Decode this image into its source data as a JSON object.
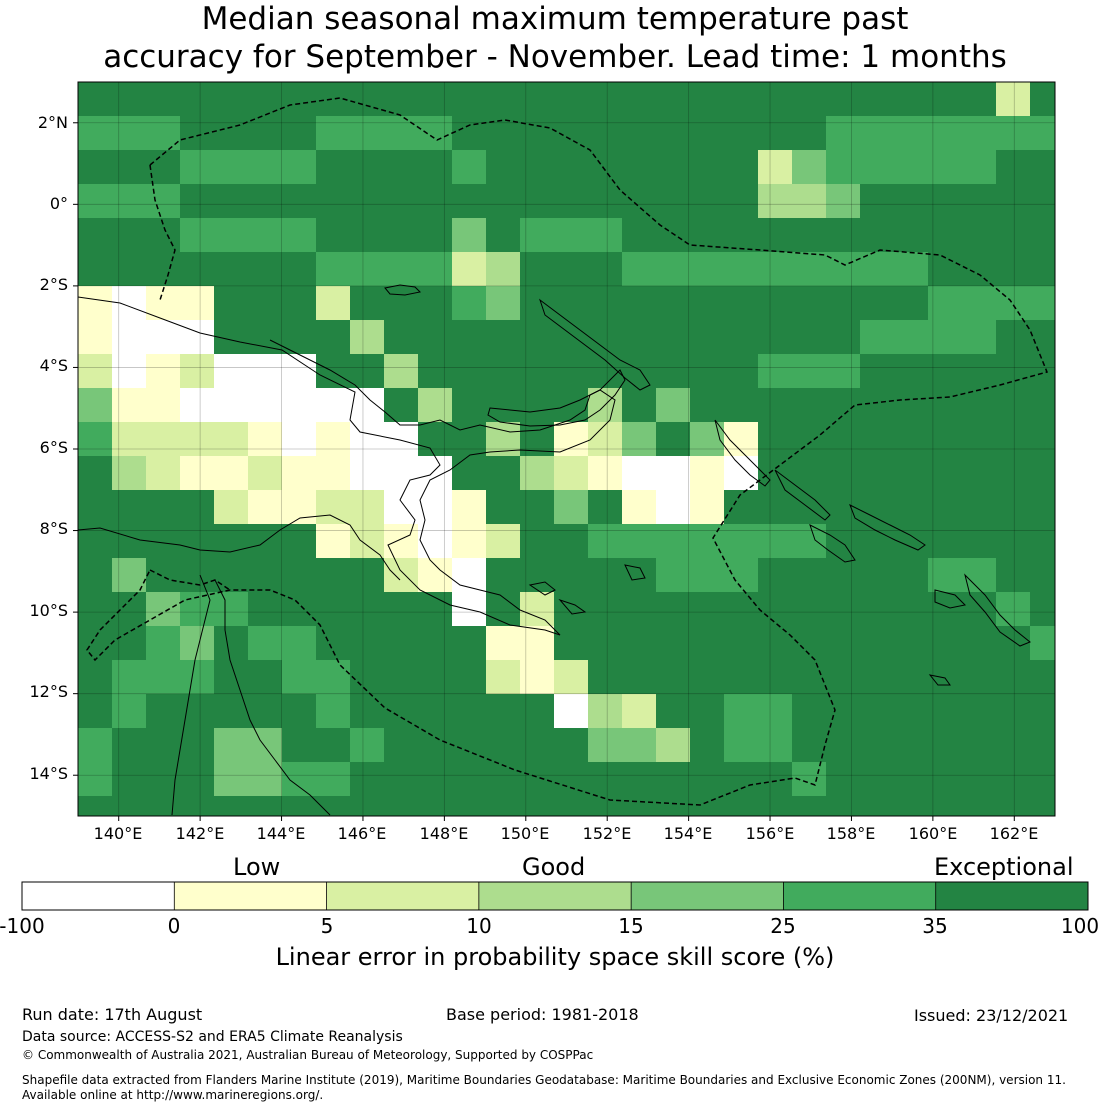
{
  "title": {
    "line1": "Median seasonal maximum temperature past",
    "line2": "accuracy for September - November. Lead time: 1 months"
  },
  "map": {
    "lat_labels": [
      "2°N",
      "0°",
      "2°S",
      "4°S",
      "6°S",
      "8°S",
      "10°S",
      "12°S",
      "14°S"
    ],
    "lon_labels": [
      "140°E",
      "142°E",
      "144°E",
      "146°E",
      "148°E",
      "150°E",
      "152°E",
      "154°E",
      "156°E",
      "158°E",
      "160°E",
      "162°E"
    ],
    "extent": {
      "lon_min": 139.0,
      "lon_max": 163.0,
      "lat_min": -15.0,
      "lat_max": 3.0
    },
    "grid": "on"
  },
  "colorbar": {
    "categories": [
      "Low",
      "Good",
      "Exceptional"
    ],
    "ticks": [
      "-100",
      "0",
      "5",
      "10",
      "15",
      "25",
      "35",
      "100"
    ],
    "colors": [
      "#ffffff",
      "#ffffcc",
      "#d9f0a3",
      "#addd8e",
      "#78c679",
      "#41ab5d",
      "#238443"
    ],
    "title": "Linear error in probability space skill score (%)"
  },
  "footer": {
    "run_date": "Run date: 17th August",
    "base_period": "Base period: 1981-2018",
    "issued": "Issued: 23/12/2021",
    "data_source": "Data source: ACCESS-S2 and ERA5 Climate Reanalysis",
    "copyright": "© Commonwealth of Australia 2021, Australian Bureau of Meteorology, Supported by COSPPac",
    "shapefile_line1": "Shapefile data extracted from Flanders Marine Institute (2019), Maritime Boundaries Geodatabase: Maritime Boundaries and Exclusive Economic Zones (200NM), version 11.",
    "shapefile_line2": "Available online at http://www.marineregions.org/."
  }
}
